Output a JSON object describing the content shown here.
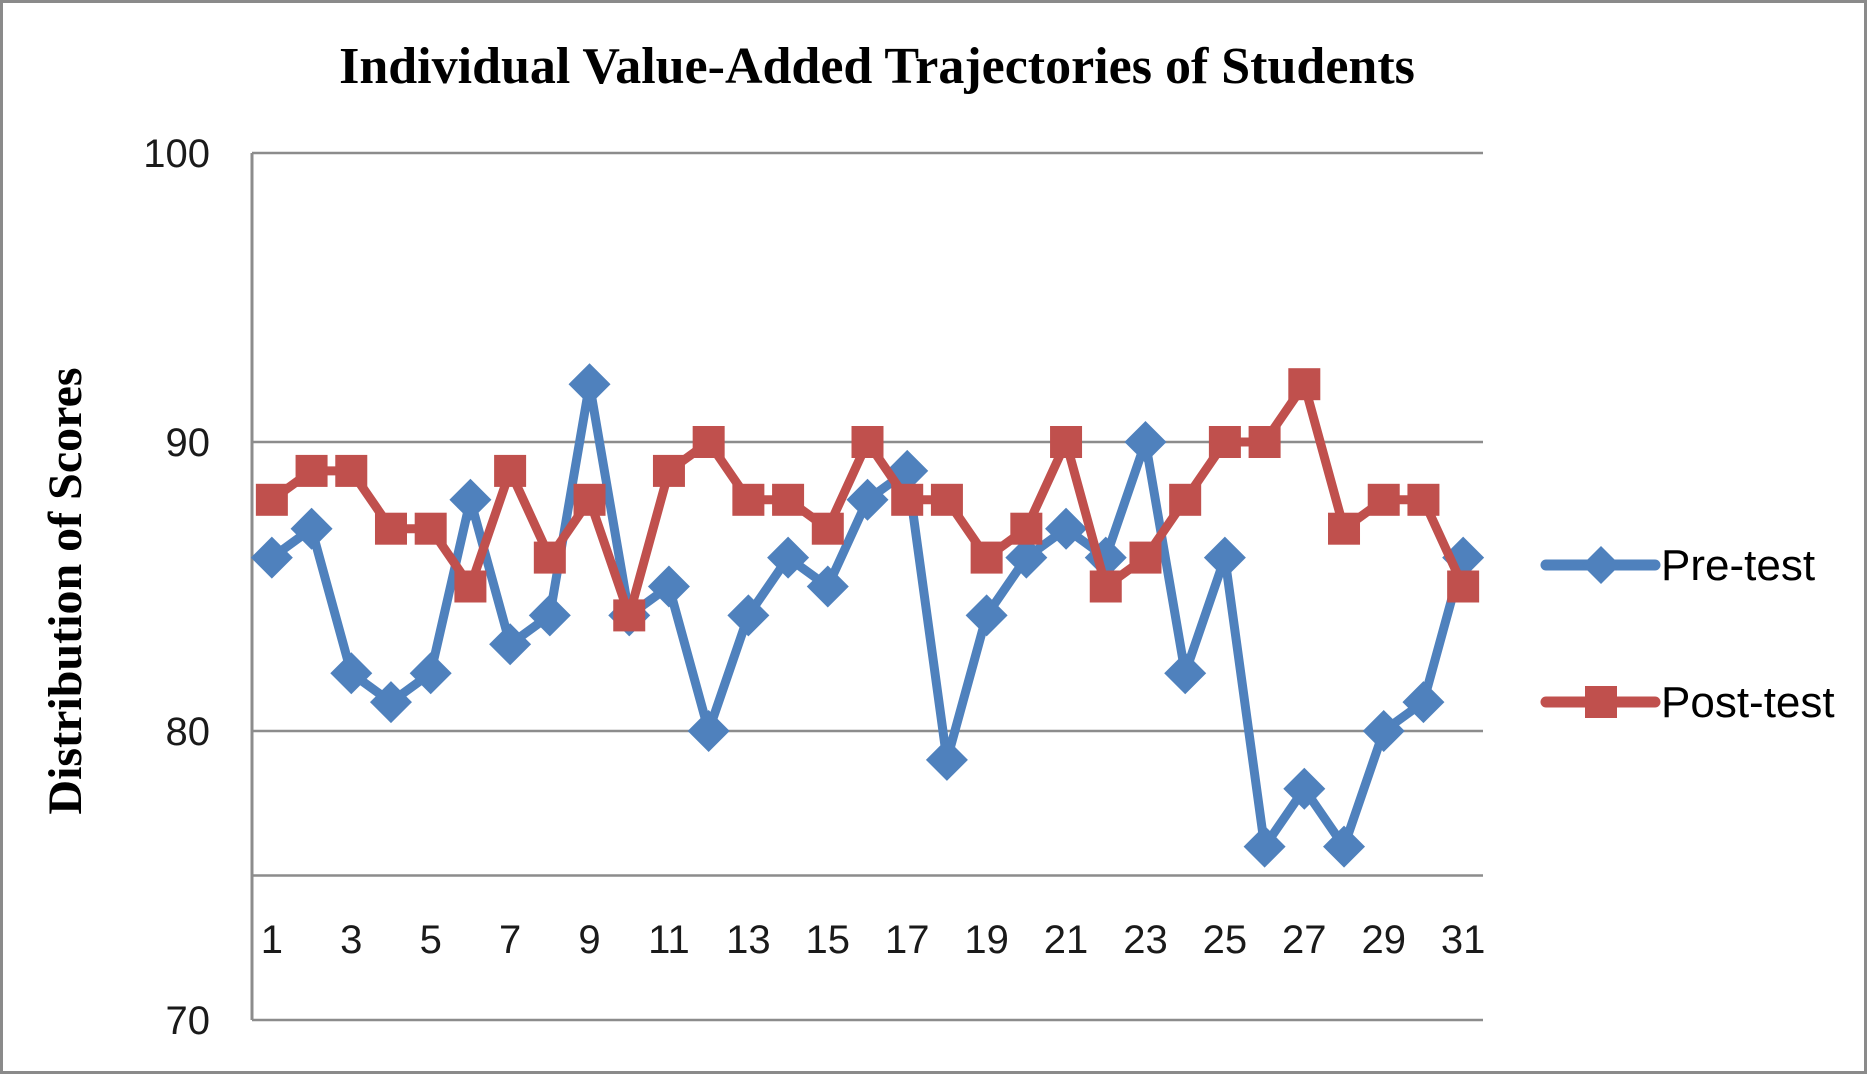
{
  "chart_data": {
    "type": "line",
    "title": "Individual Value-Added Trajectories of Students",
    "xlabel": "",
    "ylabel": "Distribution of Scores",
    "x": [
      1,
      2,
      3,
      4,
      5,
      6,
      7,
      8,
      9,
      10,
      11,
      12,
      13,
      14,
      15,
      16,
      17,
      18,
      19,
      20,
      21,
      22,
      23,
      24,
      25,
      26,
      27,
      28,
      29,
      30,
      31
    ],
    "x_tick_labels": [
      "1",
      "3",
      "5",
      "7",
      "9",
      "11",
      "13",
      "15",
      "17",
      "19",
      "21",
      "23",
      "25",
      "27",
      "29",
      "31"
    ],
    "y_ticks": [
      "100",
      "90",
      "80",
      "70"
    ],
    "ylim": [
      70,
      100
    ],
    "gridlines_y": [
      100,
      90,
      80
    ],
    "category_axis_crosses_at": 75,
    "grid_on": true,
    "grid_color": "#8c8c8c",
    "legend_position": "right",
    "series": [
      {
        "name": "Pre-test",
        "marker": "diamond",
        "color": "#4F81BD",
        "values": [
          86,
          87,
          82,
          81,
          82,
          88,
          83,
          84,
          92,
          84,
          85,
          80,
          84,
          86,
          85,
          88,
          89,
          79,
          84,
          86,
          87,
          86,
          90,
          82,
          86,
          76,
          78,
          76,
          80,
          81,
          86
        ]
      },
      {
        "name": "Post-test",
        "marker": "square",
        "color": "#C0504D",
        "values": [
          88,
          89,
          89,
          87,
          87,
          85,
          89,
          86,
          88,
          84,
          89,
          90,
          88,
          88,
          87,
          90,
          88,
          88,
          86,
          87,
          90,
          85,
          86,
          88,
          90,
          90,
          92,
          87,
          88,
          88,
          85
        ]
      }
    ]
  }
}
